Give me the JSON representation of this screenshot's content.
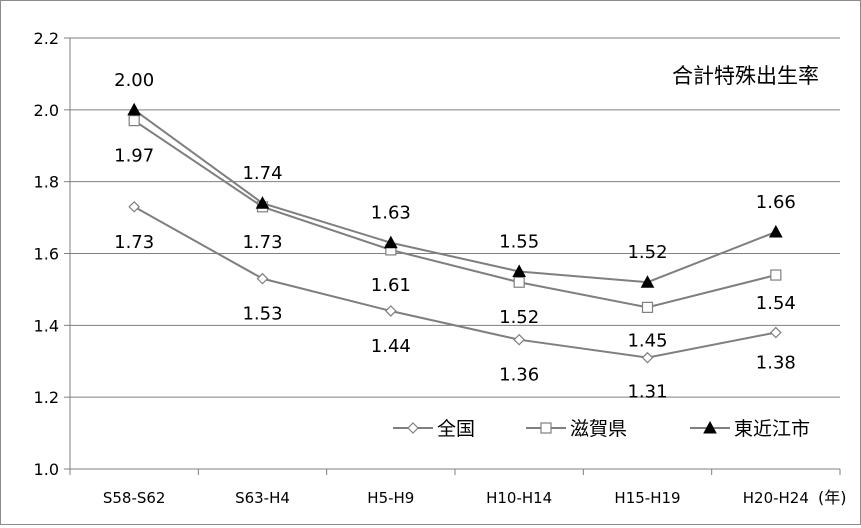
{
  "chart_data": {
    "type": "line",
    "title": "合計特殊出生率",
    "xunit": "(年)",
    "categories": [
      "S58-S62",
      "S63-H4",
      "H5-H9",
      "H10-H14",
      "H15-H19",
      "H20-H24"
    ],
    "ylim": [
      1.0,
      2.2
    ],
    "yticks": [
      "1.0",
      "1.2",
      "1.4",
      "1.6",
      "1.8",
      "2.0",
      "2.2"
    ],
    "grid": true,
    "legend_position": "bottom-right",
    "series": [
      {
        "name": "全国",
        "marker": "diamond",
        "values": [
          1.73,
          1.53,
          1.44,
          1.36,
          1.31,
          1.38
        ],
        "labels": [
          "1.73",
          "1.53",
          "1.44",
          "1.36",
          "1.31",
          "1.38"
        ]
      },
      {
        "name": "滋賀県",
        "marker": "square",
        "values": [
          1.97,
          1.73,
          1.61,
          1.52,
          1.45,
          1.54
        ],
        "labels": [
          "1.97",
          "1.73",
          "1.61",
          "1.52",
          "1.45",
          "1.54"
        ]
      },
      {
        "name": "東近江市",
        "marker": "triangle",
        "values": [
          2.0,
          1.74,
          1.63,
          1.55,
          1.52,
          1.66
        ],
        "labels": [
          "2.00",
          "1.74",
          "1.63",
          "1.55",
          "1.52",
          "1.66"
        ]
      }
    ],
    "colors": {
      "line": "#7f7f7f",
      "grid": "#7f7f7f",
      "marker_fill_open": "#ffffff",
      "marker_fill_solid": "#000000"
    }
  }
}
